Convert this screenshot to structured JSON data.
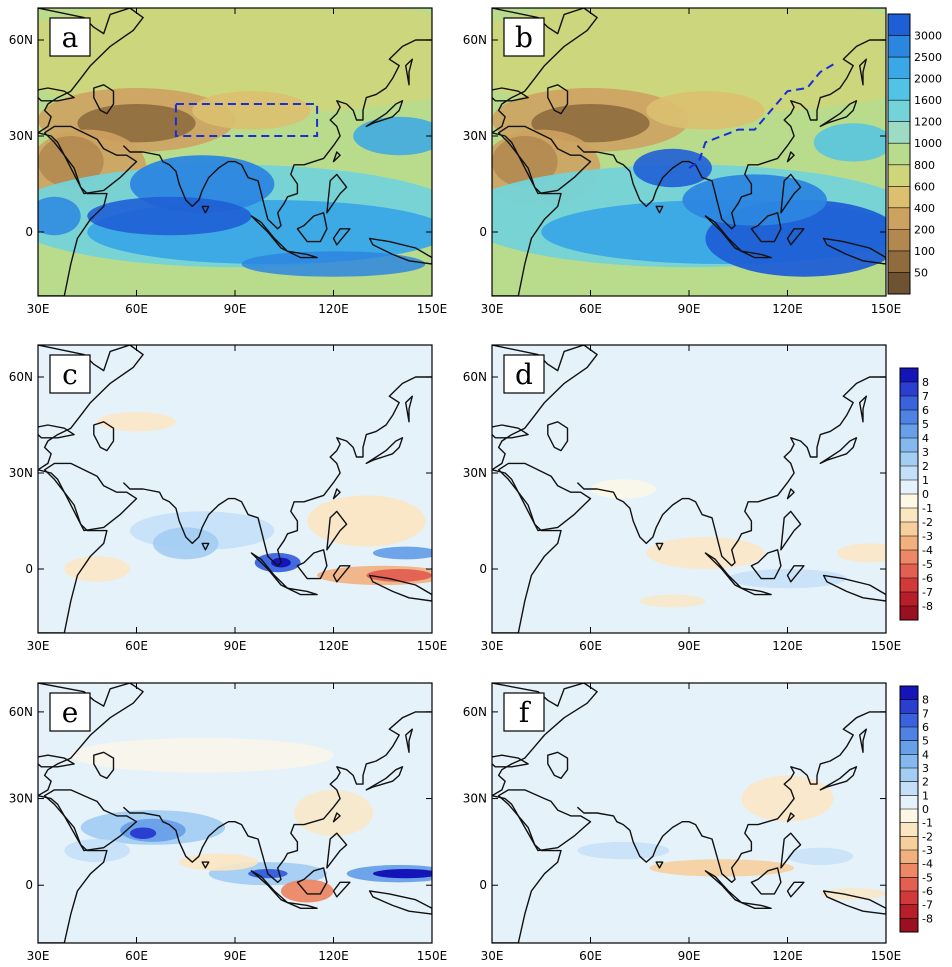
{
  "figure": {
    "panels": [
      {
        "id": "a",
        "label": "a",
        "group": "precip",
        "box": true
      },
      {
        "id": "b",
        "label": "b",
        "group": "precip",
        "route": true
      },
      {
        "id": "c",
        "label": "c",
        "group": "anom",
        "scheme": "c"
      },
      {
        "id": "d",
        "label": "d",
        "group": "anom",
        "scheme": "d"
      },
      {
        "id": "e",
        "label": "e",
        "group": "anom",
        "scheme": "e"
      },
      {
        "id": "f",
        "label": "f",
        "group": "anom",
        "scheme": "f"
      }
    ],
    "lon_ticks": [
      "30E",
      "60E",
      "90E",
      "120E",
      "150E"
    ],
    "lat_ticks": [
      "60N",
      "30N",
      "0"
    ],
    "lon_values": [
      30,
      60,
      90,
      120,
      150
    ],
    "lat_values": [
      60,
      30,
      0
    ],
    "colorbar_top": {
      "labels": [
        "3000",
        "2500",
        "2000",
        "1600",
        "1200",
        "1000",
        "800",
        "600",
        "400",
        "200",
        "100",
        "50"
      ],
      "colors": [
        "#1f5fd6",
        "#2b86e0",
        "#3aa8e6",
        "#52c3e4",
        "#74d3d8",
        "#9ddbc5",
        "#b9dc8c",
        "#cfd57a",
        "#dcc070",
        "#cda260",
        "#b38850",
        "#8f6b3e",
        "#6e5232"
      ]
    },
    "colorbar_anom": {
      "labels": [
        "8",
        "7",
        "6",
        "5",
        "4",
        "3",
        "2",
        "1",
        "0",
        "-1",
        "-2",
        "-3",
        "-4",
        "-5",
        "-6",
        "-7",
        "-8"
      ],
      "colors": [
        "#1414b8",
        "#2a3fd0",
        "#3a62dc",
        "#4f82e2",
        "#679fe8",
        "#84b8ee",
        "#a3cdf3",
        "#c4e0f8",
        "#e6f2fa",
        "#fdf7e6",
        "#fbe6c2",
        "#f7cf9c",
        "#f2b07d",
        "#ec8866",
        "#e25f52",
        "#d23a3a",
        "#b81e2a",
        "#9a1020"
      ]
    }
  }
}
